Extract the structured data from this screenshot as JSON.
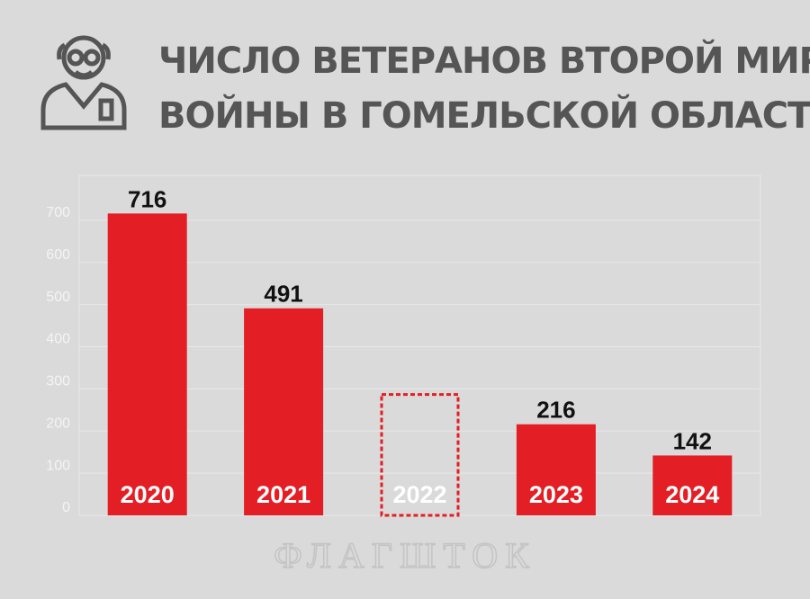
{
  "chart_data": {
    "type": "bar",
    "title": [
      "ЧИСЛО ВЕТЕРАНОВ ВТОРОЙ МИРОВОЙ",
      "ВОЙНЫ В ГОМЕЛЬСКОЙ ОБЛАСТИ"
    ],
    "categories": [
      "2020",
      "2021",
      "2022",
      "2023",
      "2024"
    ],
    "values": [
      716,
      491,
      290,
      216,
      142
    ],
    "value_labels": [
      "716",
      "491",
      null,
      "216",
      "142"
    ],
    "dashed": [
      false,
      false,
      true,
      false,
      false
    ],
    "color": "#e31e24",
    "ylim": [
      0,
      800
    ],
    "yticks": [
      0,
      100,
      200,
      300,
      400,
      500,
      600,
      700
    ],
    "grid": true,
    "watermark": "ФЛАГШТОК"
  }
}
